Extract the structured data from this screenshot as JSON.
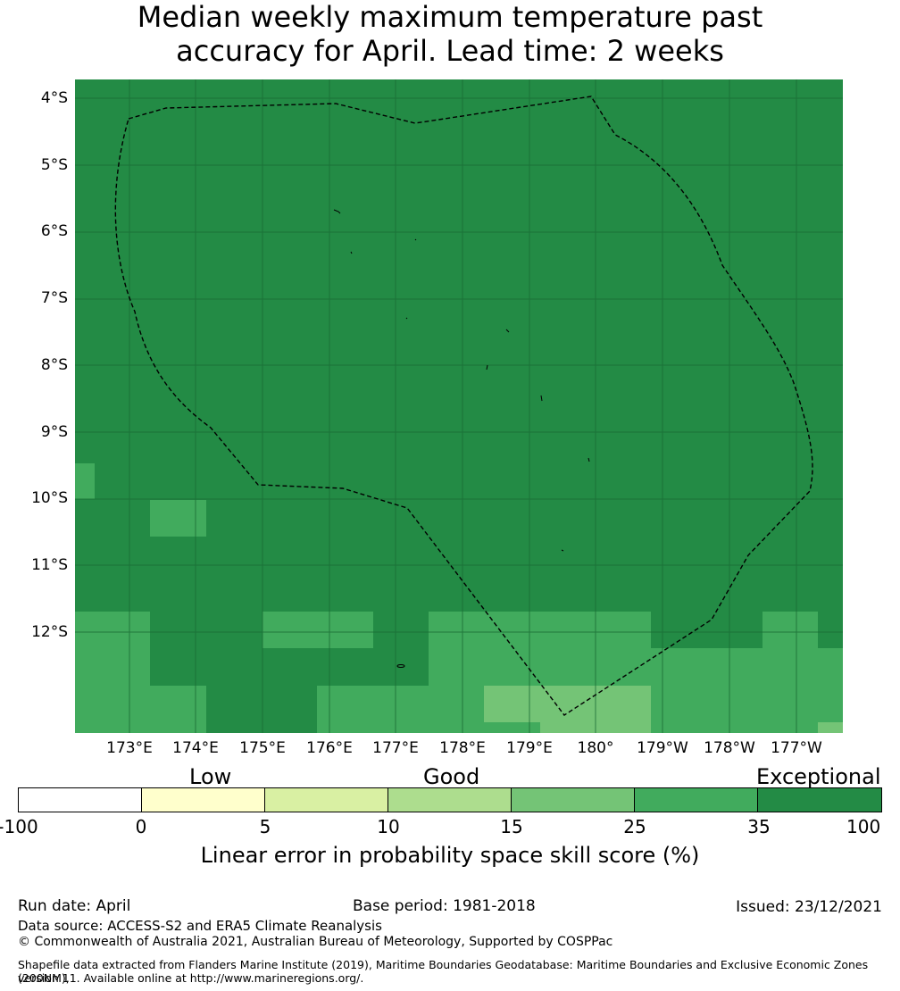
{
  "title": {
    "line1": "Median weekly maximum temperature past",
    "line2": "accuracy for April. Lead time: 2 weeks"
  },
  "map": {
    "lat_labels": [
      "4°S",
      "5°S",
      "6°S",
      "7°S",
      "8°S",
      "9°S",
      "10°S",
      "11°S",
      "12°S"
    ],
    "lon_labels": [
      "173°E",
      "174°E",
      "175°E",
      "176°E",
      "177°E",
      "178°E",
      "179°E",
      "180°",
      "179°W",
      "178°W",
      "177°W"
    ],
    "colors": {
      "exceptional": "#238b45",
      "good_25_35": "#41ab5d",
      "good_15_25": "#74c476",
      "fair_10_15": "#addd8e",
      "fair_5_10": "#d9f0a3",
      "low_0_5": "#ffffcc",
      "neg": "#ffffff"
    },
    "boundary_style": "dashed",
    "gridlines": true
  },
  "colorbar": {
    "categories": [
      "Low",
      "Good",
      "Exceptional"
    ],
    "ticks": [
      "-100",
      "0",
      "5",
      "10",
      "15",
      "25",
      "35",
      "100"
    ],
    "segment_colors": [
      "#ffffff",
      "#ffffcc",
      "#d9f0a3",
      "#addd8e",
      "#74c476",
      "#41ab5d",
      "#238b45"
    ],
    "label": "Linear error in probability space skill score (%)"
  },
  "footer": {
    "run_date": "Run date: April",
    "base_period": "Base period: 1981-2018",
    "issued": "Issued: 23/12/2021",
    "data_source": "Data source: ACCESS-S2 and ERA5 Climate Reanalysis",
    "copyright": "© Commonwealth of Australia 2021, Australian Bureau of Meteorology, Supported by COSPPac",
    "shapefile_line1": "Shapefile data extracted from Flanders Marine Institute (2019), Maritime Boundaries Geodatabase: Maritime Boundaries and Exclusive Economic Zones (200NM),",
    "shapefile_line2": "version 11. Available online at http://www.marineregions.org/."
  }
}
